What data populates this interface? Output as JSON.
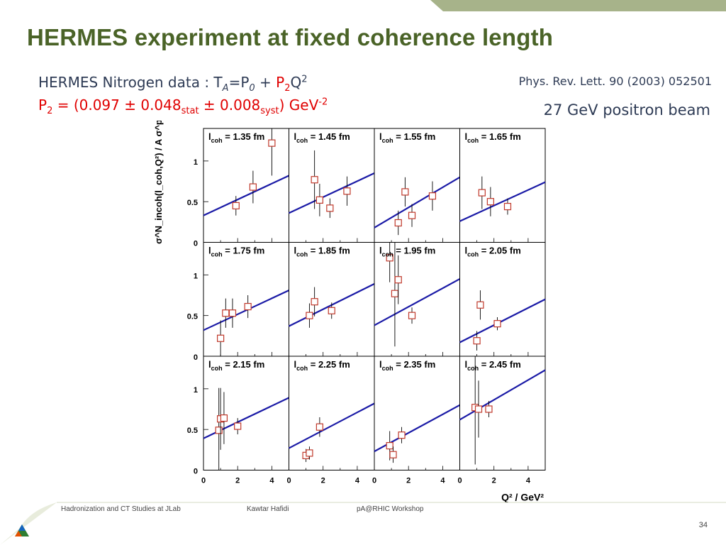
{
  "slide": {
    "title": "HERMES experiment at fixed coherence length",
    "line1": {
      "text1": "HERMES Nitrogen data : T",
      "sub_a": "A",
      "text2": "=P",
      "sub_0": "0",
      "text3": " + ",
      "red_p": "P",
      "sub_2": "2",
      "text4": "Q",
      "sup_2": "2"
    },
    "line2": {
      "p": "P",
      "p_sub": "2",
      "eq": " = (0.097 ± 0.048",
      "stat": "stat",
      "mid": " ± 0.008",
      "syst": "syst",
      "end": ") GeV",
      "exp": "-2"
    },
    "reference": "Phys. Rev. Lett. 90 (2003) 052501",
    "beam": "27 GeV positron beam",
    "footer": {
      "left": "Hadronization and CT Studies at JLab",
      "center": "Kawtar Hafidi",
      "right": "pA@RHIC Workshop",
      "page": "34"
    },
    "colors": {
      "title": "#4a6327",
      "body_text": "#2e3b55",
      "highlight": "#e00000",
      "fit_line": "#1a1aa6",
      "marker": "#c0392b",
      "top_bar": "#a7b38a"
    }
  },
  "chart_data": {
    "type": "scatter",
    "title": "",
    "xlabel": "Q² / GeV²",
    "ylabel": "σ^N_incoh(l_coh,Q²) / A σ^p",
    "xlim": [
      0,
      5
    ],
    "ylim": [
      0,
      1.4
    ],
    "x_ticks": [
      "0",
      "2",
      "4"
    ],
    "y_ticks": [
      "0",
      "0.5",
      "1"
    ],
    "grid": false,
    "layout": "3x4 panel grid",
    "panels": [
      {
        "label": "1.35",
        "line": [
          0.33,
          0.82
        ],
        "points": [
          {
            "x": 1.9,
            "y": 0.45,
            "e": 0.12
          },
          {
            "x": 2.9,
            "y": 0.68,
            "e": 0.2
          },
          {
            "x": 4.0,
            "y": 1.22,
            "e": 0.4
          }
        ]
      },
      {
        "label": "1.45",
        "line": [
          0.36,
          0.85
        ],
        "points": [
          {
            "x": 1.5,
            "y": 0.77,
            "e": 0.36
          },
          {
            "x": 1.8,
            "y": 0.52,
            "e": 0.2
          },
          {
            "x": 2.4,
            "y": 0.42,
            "e": 0.12
          },
          {
            "x": 3.4,
            "y": 0.63,
            "e": 0.18
          }
        ]
      },
      {
        "label": "1.55",
        "line": [
          0.18,
          0.8
        ],
        "points": [
          {
            "x": 1.4,
            "y": 0.24,
            "e": 0.15
          },
          {
            "x": 1.8,
            "y": 0.62,
            "e": 0.18
          },
          {
            "x": 2.2,
            "y": 0.33,
            "e": 0.14
          },
          {
            "x": 3.4,
            "y": 0.57,
            "e": 0.18
          }
        ]
      },
      {
        "label": "1.65",
        "line": [
          0.26,
          0.74
        ],
        "points": [
          {
            "x": 1.3,
            "y": 0.61,
            "e": 0.2
          },
          {
            "x": 1.8,
            "y": 0.5,
            "e": 0.18
          },
          {
            "x": 2.8,
            "y": 0.44,
            "e": 0.1
          }
        ]
      },
      {
        "label": "1.75",
        "line": [
          0.32,
          0.81
        ],
        "points": [
          {
            "x": 1.0,
            "y": 0.22,
            "e": 0.22
          },
          {
            "x": 1.3,
            "y": 0.53,
            "e": 0.18
          },
          {
            "x": 1.7,
            "y": 0.53,
            "e": 0.18
          },
          {
            "x": 2.6,
            "y": 0.61,
            "e": 0.14
          }
        ]
      },
      {
        "label": "1.85",
        "line": [
          0.37,
          0.89
        ],
        "points": [
          {
            "x": 1.2,
            "y": 0.5,
            "e": 0.15
          },
          {
            "x": 1.5,
            "y": 0.67,
            "e": 0.18
          },
          {
            "x": 2.5,
            "y": 0.56,
            "e": 0.1
          }
        ]
      },
      {
        "label": "1.95",
        "line": [
          0.38,
          0.95
        ],
        "points": [
          {
            "x": 0.9,
            "y": 1.21,
            "e": 0.3
          },
          {
            "x": 1.2,
            "y": 0.77,
            "e": 0.65
          },
          {
            "x": 1.4,
            "y": 0.94,
            "e": 0.3
          },
          {
            "x": 2.2,
            "y": 0.5,
            "e": 0.1
          }
        ]
      },
      {
        "label": "2.05",
        "line": [
          0.17,
          0.7
        ],
        "points": [
          {
            "x": 1.0,
            "y": 0.19,
            "e": 0.12
          },
          {
            "x": 1.2,
            "y": 0.63,
            "e": 0.18
          },
          {
            "x": 2.2,
            "y": 0.4,
            "e": 0.08
          }
        ]
      },
      {
        "label": "2.15",
        "line": [
          0.39,
          0.89
        ],
        "points": [
          {
            "x": 0.9,
            "y": 0.49,
            "e": 0.52
          },
          {
            "x": 1.0,
            "y": 0.63,
            "e": 0.38
          },
          {
            "x": 1.2,
            "y": 0.64,
            "e": 0.32
          },
          {
            "x": 2.0,
            "y": 0.54,
            "e": 0.1
          }
        ]
      },
      {
        "label": "2.25",
        "line": [
          0.27,
          0.82
        ],
        "points": [
          {
            "x": 1.0,
            "y": 0.18,
            "e": 0.08
          },
          {
            "x": 1.2,
            "y": 0.21,
            "e": 0.08
          },
          {
            "x": 1.8,
            "y": 0.53,
            "e": 0.12
          }
        ]
      },
      {
        "label": "2.35",
        "line": [
          0.23,
          0.8
        ],
        "points": [
          {
            "x": 0.9,
            "y": 0.3,
            "e": 0.18
          },
          {
            "x": 1.1,
            "y": 0.19,
            "e": 0.1
          },
          {
            "x": 1.6,
            "y": 0.43,
            "e": 0.1
          }
        ]
      },
      {
        "label": "2.45",
        "line": [
          0.62,
          1.23
        ],
        "points": [
          {
            "x": 0.9,
            "y": 0.77,
            "e": 0.7
          },
          {
            "x": 1.1,
            "y": 0.75,
            "e": 0.35
          },
          {
            "x": 1.7,
            "y": 0.75,
            "e": 0.1
          }
        ]
      }
    ],
    "panel_label_prefix": "l",
    "panel_label_sub": "coh",
    "panel_label_unit": "fm"
  }
}
